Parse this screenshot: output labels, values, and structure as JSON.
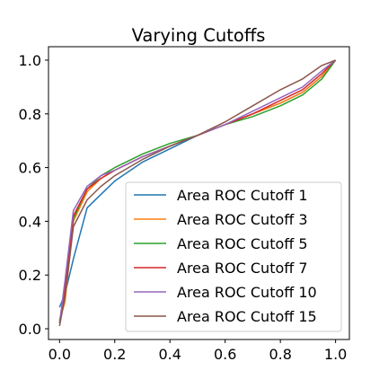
{
  "chart_data": {
    "type": "line",
    "title": "Varying Cutoffs",
    "xlabel": "",
    "ylabel": "",
    "xlim": [
      -0.04,
      1.05
    ],
    "ylim": [
      -0.04,
      1.05
    ],
    "xticks": [
      0.0,
      0.2,
      0.4,
      0.6,
      0.8,
      1.0
    ],
    "xtick_labels": [
      "0.0",
      "0.2",
      "0.4",
      "0.6",
      "0.8",
      "1.0"
    ],
    "yticks": [
      0.0,
      0.2,
      0.4,
      0.6,
      0.8,
      1.0
    ],
    "ytick_labels": [
      "0.0",
      "0.2",
      "0.4",
      "0.6",
      "0.8",
      "1.0"
    ],
    "grid": false,
    "legend_position": "lower-right",
    "series": [
      {
        "name": "Area ROC Cutoff 1",
        "color": "#1f77b4",
        "x": [
          0.0,
          0.02,
          0.05,
          0.1,
          0.2,
          0.3,
          0.4,
          0.5,
          0.6,
          0.7,
          0.8,
          0.88,
          0.95,
          1.0
        ],
        "y": [
          0.08,
          0.13,
          0.26,
          0.45,
          0.55,
          0.62,
          0.67,
          0.72,
          0.76,
          0.8,
          0.84,
          0.88,
          0.94,
          1.0
        ]
      },
      {
        "name": "Area ROC Cutoff 3",
        "color": "#ff7f0e",
        "x": [
          0.0,
          0.02,
          0.05,
          0.1,
          0.15,
          0.2,
          0.3,
          0.4,
          0.5,
          0.6,
          0.7,
          0.8,
          0.88,
          0.95,
          1.0
        ],
        "y": [
          0.03,
          0.1,
          0.4,
          0.51,
          0.56,
          0.59,
          0.64,
          0.68,
          0.72,
          0.76,
          0.8,
          0.84,
          0.88,
          0.94,
          1.0
        ]
      },
      {
        "name": "Area ROC Cutoff 5",
        "color": "#2ca02c",
        "x": [
          0.0,
          0.02,
          0.05,
          0.1,
          0.15,
          0.2,
          0.3,
          0.4,
          0.5,
          0.6,
          0.7,
          0.8,
          0.88,
          0.95,
          1.0
        ],
        "y": [
          0.03,
          0.12,
          0.41,
          0.52,
          0.57,
          0.6,
          0.65,
          0.69,
          0.72,
          0.76,
          0.79,
          0.83,
          0.87,
          0.93,
          1.0
        ]
      },
      {
        "name": "Area ROC Cutoff 7",
        "color": "#d62728",
        "x": [
          0.0,
          0.02,
          0.05,
          0.1,
          0.15,
          0.2,
          0.3,
          0.4,
          0.5,
          0.6,
          0.7,
          0.8,
          0.88,
          0.95,
          1.0
        ],
        "y": [
          0.02,
          0.15,
          0.42,
          0.52,
          0.56,
          0.59,
          0.64,
          0.68,
          0.72,
          0.76,
          0.8,
          0.85,
          0.89,
          0.95,
          1.0
        ]
      },
      {
        "name": "Area ROC Cutoff 10",
        "color": "#9467bd",
        "x": [
          0.0,
          0.02,
          0.05,
          0.1,
          0.15,
          0.2,
          0.3,
          0.4,
          0.5,
          0.6,
          0.7,
          0.8,
          0.88,
          0.95,
          1.0
        ],
        "y": [
          0.02,
          0.18,
          0.44,
          0.53,
          0.57,
          0.59,
          0.64,
          0.68,
          0.72,
          0.76,
          0.81,
          0.86,
          0.9,
          0.96,
          1.0
        ]
      },
      {
        "name": "Area ROC Cutoff 15",
        "color": "#8c564b",
        "x": [
          0.0,
          0.02,
          0.05,
          0.1,
          0.15,
          0.2,
          0.3,
          0.4,
          0.5,
          0.6,
          0.7,
          0.8,
          0.88,
          0.95,
          1.0
        ],
        "y": [
          0.01,
          0.12,
          0.38,
          0.48,
          0.53,
          0.57,
          0.63,
          0.68,
          0.72,
          0.77,
          0.83,
          0.89,
          0.93,
          0.98,
          1.0
        ]
      }
    ]
  }
}
